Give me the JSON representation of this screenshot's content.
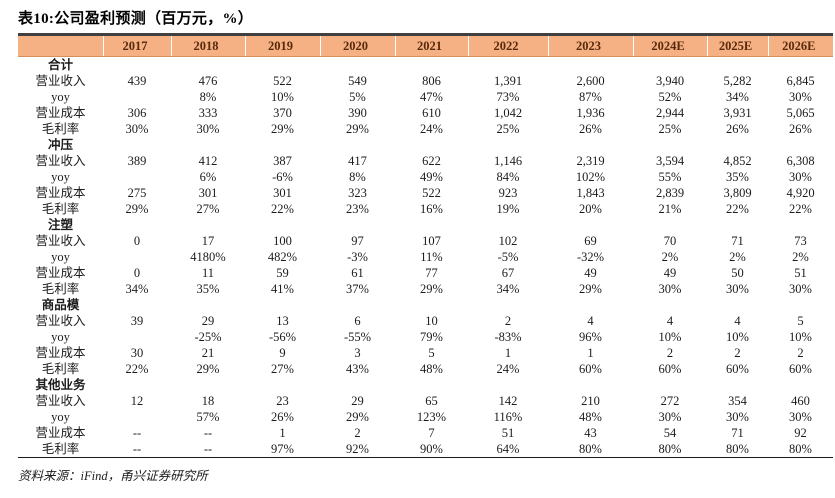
{
  "title": "表10:公司盈利预测（百万元，%）",
  "source": "资料来源：iFind，甬兴证券研究所",
  "colors": {
    "header_bg": "#F5B183",
    "header_text": "#58290A",
    "top_border": "#404040",
    "bottom_border": "#1A1A1A",
    "body_text": "#1C1C1C"
  },
  "table": {
    "columns": [
      "",
      "2017",
      "2018",
      "2019",
      "2020",
      "2021",
      "2022",
      "2023",
      "2024E",
      "2025E",
      "2026E"
    ],
    "sections": [
      {
        "name": "合计",
        "rows": [
          {
            "label": "营业收入",
            "values": [
              "439",
              "476",
              "522",
              "549",
              "806",
              "1,391",
              "2,600",
              "3,940",
              "5,282",
              "6,845"
            ]
          },
          {
            "label": "yoy",
            "values": [
              "",
              "8%",
              "10%",
              "5%",
              "47%",
              "73%",
              "87%",
              "52%",
              "34%",
              "30%"
            ]
          },
          {
            "label": "营业成本",
            "values": [
              "306",
              "333",
              "370",
              "390",
              "610",
              "1,042",
              "1,936",
              "2,944",
              "3,931",
              "5,065"
            ]
          },
          {
            "label": "毛利率",
            "values": [
              "30%",
              "30%",
              "29%",
              "29%",
              "24%",
              "25%",
              "26%",
              "25%",
              "26%",
              "26%"
            ]
          }
        ]
      },
      {
        "name": "冲压",
        "rows": [
          {
            "label": "营业收入",
            "values": [
              "389",
              "412",
              "387",
              "417",
              "622",
              "1,146",
              "2,319",
              "3,594",
              "4,852",
              "6,308"
            ]
          },
          {
            "label": "yoy",
            "values": [
              "",
              "6%",
              "-6%",
              "8%",
              "49%",
              "84%",
              "102%",
              "55%",
              "35%",
              "30%"
            ]
          },
          {
            "label": "营业成本",
            "values": [
              "275",
              "301",
              "301",
              "323",
              "522",
              "923",
              "1,843",
              "2,839",
              "3,809",
              "4,920"
            ]
          },
          {
            "label": "毛利率",
            "values": [
              "29%",
              "27%",
              "22%",
              "23%",
              "16%",
              "19%",
              "20%",
              "21%",
              "22%",
              "22%"
            ]
          }
        ]
      },
      {
        "name": "注塑",
        "rows": [
          {
            "label": "营业收入",
            "values": [
              "0",
              "17",
              "100",
              "97",
              "107",
              "102",
              "69",
              "70",
              "71",
              "73"
            ]
          },
          {
            "label": "yoy",
            "values": [
              "",
              "4180%",
              "482%",
              "-3%",
              "11%",
              "-5%",
              "-32%",
              "2%",
              "2%",
              "2%"
            ]
          },
          {
            "label": "营业成本",
            "values": [
              "0",
              "11",
              "59",
              "61",
              "77",
              "67",
              "49",
              "49",
              "50",
              "51"
            ]
          },
          {
            "label": "毛利率",
            "values": [
              "34%",
              "35%",
              "41%",
              "37%",
              "29%",
              "34%",
              "29%",
              "30%",
              "30%",
              "30%"
            ]
          }
        ]
      },
      {
        "name": "商品模",
        "rows": [
          {
            "label": "营业收入",
            "values": [
              "39",
              "29",
              "13",
              "6",
              "10",
              "2",
              "4",
              "4",
              "4",
              "5"
            ]
          },
          {
            "label": "yoy",
            "values": [
              "",
              "-25%",
              "-56%",
              "-55%",
              "79%",
              "-83%",
              "96%",
              "10%",
              "10%",
              "10%"
            ]
          },
          {
            "label": "营业成本",
            "values": [
              "30",
              "21",
              "9",
              "3",
              "5",
              "1",
              "1",
              "2",
              "2",
              "2"
            ]
          },
          {
            "label": "毛利率",
            "values": [
              "22%",
              "29%",
              "27%",
              "43%",
              "48%",
              "24%",
              "60%",
              "60%",
              "60%",
              "60%"
            ]
          }
        ]
      },
      {
        "name": "其他业务",
        "rows": [
          {
            "label": "营业收入",
            "values": [
              "12",
              "18",
              "23",
              "29",
              "65",
              "142",
              "210",
              "272",
              "354",
              "460"
            ]
          },
          {
            "label": "yoy",
            "values": [
              "",
              "57%",
              "26%",
              "29%",
              "123%",
              "116%",
              "48%",
              "30%",
              "30%",
              "30%"
            ]
          },
          {
            "label": "营业成本",
            "values": [
              "--",
              "--",
              "1",
              "2",
              "7",
              "51",
              "43",
              "54",
              "71",
              "92"
            ]
          },
          {
            "label": "毛利率",
            "values": [
              "--",
              "--",
              "97%",
              "92%",
              "90%",
              "64%",
              "80%",
              "80%",
              "80%",
              "80%"
            ]
          }
        ]
      }
    ]
  }
}
